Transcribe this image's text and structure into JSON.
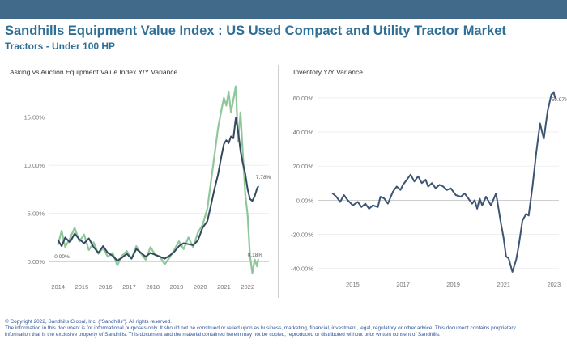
{
  "header": {
    "title": "Sandhills Equipment Value Index : US Used Compact and Utility Tractor Market",
    "subtitle": "Tractors - Under 100 HP"
  },
  "footer": {
    "line1": "© Copyright 2022, Sandhills Global, Inc. (\"Sandhills\"). All rights reserved.",
    "line2": "The information in this document is for informational purposes only.  It should not be construed or relied upon as business, marketing, financial, investment, legal, regulatory or other advice. This document contains proprietary",
    "line3": "information that is the exclusive property of Sandhills. This document and the material contained herein may not be copied, reproduced or distributed without prior written consent of Sandhills."
  },
  "colors": {
    "accent": "#41698a",
    "title": "#2f6f95",
    "asking": "#8fc79b",
    "auction": "#34495e",
    "inventory": "#3b5573"
  },
  "chart_data": [
    {
      "type": "line",
      "title": "Asking vs Auction Equipment Value Index Y/Y Variance",
      "xlabel": "",
      "ylabel": "",
      "xlim": [
        2013.6,
        2022.9
      ],
      "ylim": [
        -1.5,
        18.5
      ],
      "x_ticks": [
        2014,
        2015,
        2016,
        2017,
        2018,
        2019,
        2020,
        2021,
        2022
      ],
      "y_ticks": [
        0,
        5,
        10,
        15
      ],
      "y_tick_labels": [
        "0.00%",
        "5.00%",
        "10.00%",
        "15.00%"
      ],
      "grid": "horizontal",
      "legend": "none",
      "annotations": [
        {
          "text": "0.00%",
          "x": 2013.85,
          "y": 0.35
        },
        {
          "text": "7.78%",
          "x": 2022.35,
          "y": 8.6
        },
        {
          "text": "0.18%",
          "x": 2022.0,
          "y": 0.5
        }
      ],
      "series": [
        {
          "color": "#8fc79b",
          "x": [
            2014.0,
            2014.15,
            2014.3,
            2014.5,
            2014.7,
            2014.9,
            2015.1,
            2015.3,
            2015.5,
            2015.7,
            2015.9,
            2016.1,
            2016.3,
            2016.5,
            2016.7,
            2016.9,
            2017.1,
            2017.3,
            2017.5,
            2017.7,
            2017.9,
            2018.1,
            2018.3,
            2018.5,
            2018.7,
            2018.9,
            2019.1,
            2019.3,
            2019.5,
            2019.7,
            2019.9,
            2020.1,
            2020.3,
            2020.45,
            2020.6,
            2020.75,
            2020.9,
            2021.0,
            2021.1,
            2021.2,
            2021.3,
            2021.4,
            2021.5,
            2021.6,
            2021.7,
            2021.8,
            2021.9,
            2022.0,
            2022.1,
            2022.2,
            2022.3,
            2022.4,
            2022.45
          ],
          "values": [
            1.8,
            3.2,
            1.5,
            2.4,
            3.5,
            2.1,
            2.8,
            1.2,
            2.0,
            0.8,
            1.4,
            0.5,
            0.9,
            -0.4,
            0.6,
            1.1,
            0.3,
            1.6,
            0.8,
            0.2,
            1.5,
            0.7,
            0.5,
            -0.3,
            0.4,
            1.2,
            2.1,
            1.3,
            2.5,
            1.5,
            3.0,
            3.8,
            5.5,
            8.2,
            11.0,
            13.8,
            15.8,
            17.0,
            16.2,
            17.6,
            15.5,
            16.8,
            18.2,
            12.5,
            15.5,
            11.2,
            7.0,
            4.8,
            0.6,
            -1.2,
            0.2,
            -0.5,
            0.18
          ]
        },
        {
          "color": "#34495e",
          "x": [
            2014.0,
            2014.15,
            2014.3,
            2014.5,
            2014.7,
            2014.9,
            2015.1,
            2015.3,
            2015.5,
            2015.7,
            2015.9,
            2016.1,
            2016.3,
            2016.5,
            2016.7,
            2016.9,
            2017.1,
            2017.3,
            2017.5,
            2017.7,
            2017.9,
            2018.1,
            2018.3,
            2018.5,
            2018.7,
            2018.9,
            2019.1,
            2019.3,
            2019.5,
            2019.7,
            2019.9,
            2020.1,
            2020.3,
            2020.45,
            2020.6,
            2020.75,
            2020.9,
            2021.0,
            2021.1,
            2021.2,
            2021.3,
            2021.4,
            2021.5,
            2021.6,
            2021.7,
            2021.8,
            2021.9,
            2022.0,
            2022.1,
            2022.2,
            2022.3,
            2022.4,
            2022.45
          ],
          "values": [
            2.2,
            1.6,
            2.5,
            2.0,
            2.9,
            2.3,
            1.9,
            2.4,
            1.5,
            0.9,
            1.6,
            0.9,
            0.6,
            0.1,
            0.4,
            0.8,
            0.3,
            1.3,
            0.9,
            0.5,
            0.9,
            0.7,
            0.5,
            0.3,
            0.6,
            1.0,
            1.6,
            1.9,
            1.8,
            1.7,
            2.2,
            3.5,
            4.2,
            5.8,
            7.5,
            9.0,
            11.0,
            12.2,
            12.6,
            12.3,
            13.0,
            12.8,
            14.9,
            13.5,
            11.5,
            10.2,
            9.1,
            7.5,
            6.5,
            6.3,
            6.8,
            7.6,
            7.78
          ]
        }
      ]
    },
    {
      "type": "line",
      "title": "Inventory Y/Y Variance",
      "xlabel": "",
      "ylabel": "",
      "xlim": [
        2013.6,
        2023.2
      ],
      "ylim": [
        -43,
        68
      ],
      "x_ticks": [
        2015,
        2017,
        2019,
        2021,
        2023
      ],
      "y_ticks": [
        -40,
        -20,
        0,
        20,
        40,
        60
      ],
      "y_tick_labels": [
        "-40.00%",
        "-20.00%",
        "0.00%",
        "20.00%",
        "40.00%",
        "60.00%"
      ],
      "grid": "horizontal",
      "legend": "none",
      "annotations": [
        {
          "text": "59.97%",
          "x": 2022.9,
          "y": 58
        }
      ],
      "series": [
        {
          "color": "#3b5573",
          "x": [
            2014.2,
            2014.35,
            2014.5,
            2014.65,
            2014.8,
            2015.0,
            2015.2,
            2015.35,
            2015.5,
            2015.65,
            2015.8,
            2016.0,
            2016.1,
            2016.25,
            2016.4,
            2016.6,
            2016.75,
            2016.9,
            2017.0,
            2017.15,
            2017.3,
            2017.45,
            2017.6,
            2017.75,
            2017.9,
            2018.0,
            2018.15,
            2018.3,
            2018.45,
            2018.6,
            2018.75,
            2018.9,
            2019.1,
            2019.3,
            2019.45,
            2019.6,
            2019.75,
            2019.85,
            2019.95,
            2020.05,
            2020.15,
            2020.3,
            2020.5,
            2020.7,
            2020.9,
            2021.0,
            2021.1,
            2021.2,
            2021.35,
            2021.5,
            2021.6,
            2021.75,
            2021.9,
            2022.0,
            2022.15,
            2022.3,
            2022.45,
            2022.6,
            2022.75,
            2022.9,
            2023.0,
            2023.05
          ],
          "values": [
            4,
            2,
            -1,
            3,
            0,
            -3,
            -1,
            -4,
            -2,
            -5,
            -3,
            -4,
            2,
            1,
            -2,
            5,
            8,
            6,
            9,
            12,
            15,
            11,
            14,
            10,
            12,
            8,
            10,
            7,
            9,
            8,
            6,
            7,
            3,
            2,
            4,
            1,
            -2,
            0,
            -5,
            1,
            -3,
            2,
            -3,
            4,
            -14,
            -22,
            -33,
            -34,
            -42,
            -35,
            -27,
            -12,
            -8,
            -9,
            8,
            28,
            45,
            36,
            52,
            62,
            63,
            60
          ]
        }
      ]
    }
  ]
}
